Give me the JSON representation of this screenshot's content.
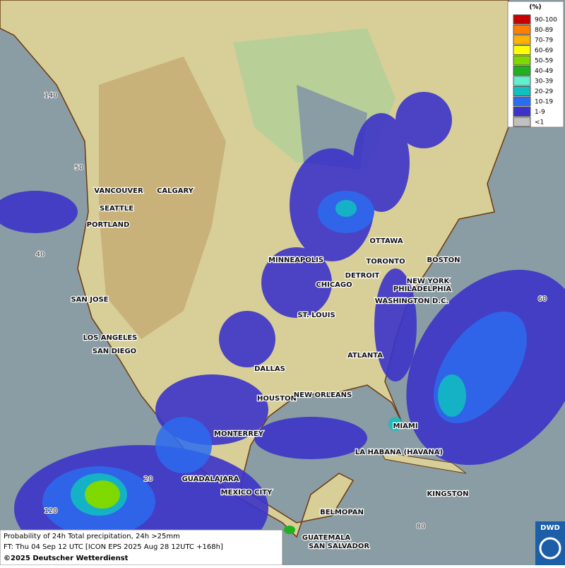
{
  "legend": {
    "title": "(%)",
    "entries": [
      {
        "label": "90-100",
        "color": "#c80000"
      },
      {
        "label": "80-89",
        "color": "#ff7f00"
      },
      {
        "label": "70-79",
        "color": "#ffb300"
      },
      {
        "label": "60-69",
        "color": "#ffff00"
      },
      {
        "label": "50-59",
        "color": "#7fd800"
      },
      {
        "label": "40-49",
        "color": "#20b020"
      },
      {
        "label": "30-39",
        "color": "#60f0d0"
      },
      {
        "label": "20-29",
        "color": "#10c0c0"
      },
      {
        "label": "10-19",
        "color": "#2c6cf0"
      },
      {
        "label": "1-9",
        "color": "#3c34c8"
      },
      {
        "label": "<1",
        "color": "#c0c0c0"
      }
    ]
  },
  "cities": [
    "VANCOUVER",
    "CALGARY",
    "SEATTLE",
    "PORTLAND",
    "MINNEAPOLIS",
    "OTTAWA",
    "TORONTO",
    "BOSTON",
    "DETROIT",
    "NEW YORK",
    "CHICAGO",
    "PHILADELPHIA",
    "SAN JOSE",
    "WASHINGTON D.C.",
    "ST. LOUIS",
    "LOS ANGELES",
    "SAN DIEGO",
    "ATLANTA",
    "DALLAS",
    "HOUSTON",
    "NEW ORLEANS",
    "MIAMI",
    "MONTERREY",
    "LA HABANA (HAVANA)",
    "GUADALAJARA",
    "MEXICO CITY",
    "KINGSTON",
    "BELMOPAN",
    "GUATEMALA",
    "SAN SALVADOR"
  ],
  "graticule_labels": [
    "140",
    "50",
    "40",
    "60",
    "20",
    "120",
    "80"
  ],
  "caption": {
    "line1": "Probability of 24h Total precipitation, 24h >25mm",
    "line2": "FT: Thu 04 Sep 12 UTC [ICON EPS 2025 Aug 28 12UTC +168h]",
    "copyright": "©2025 Deutscher Wetterdienst"
  },
  "logo": "DWD"
}
